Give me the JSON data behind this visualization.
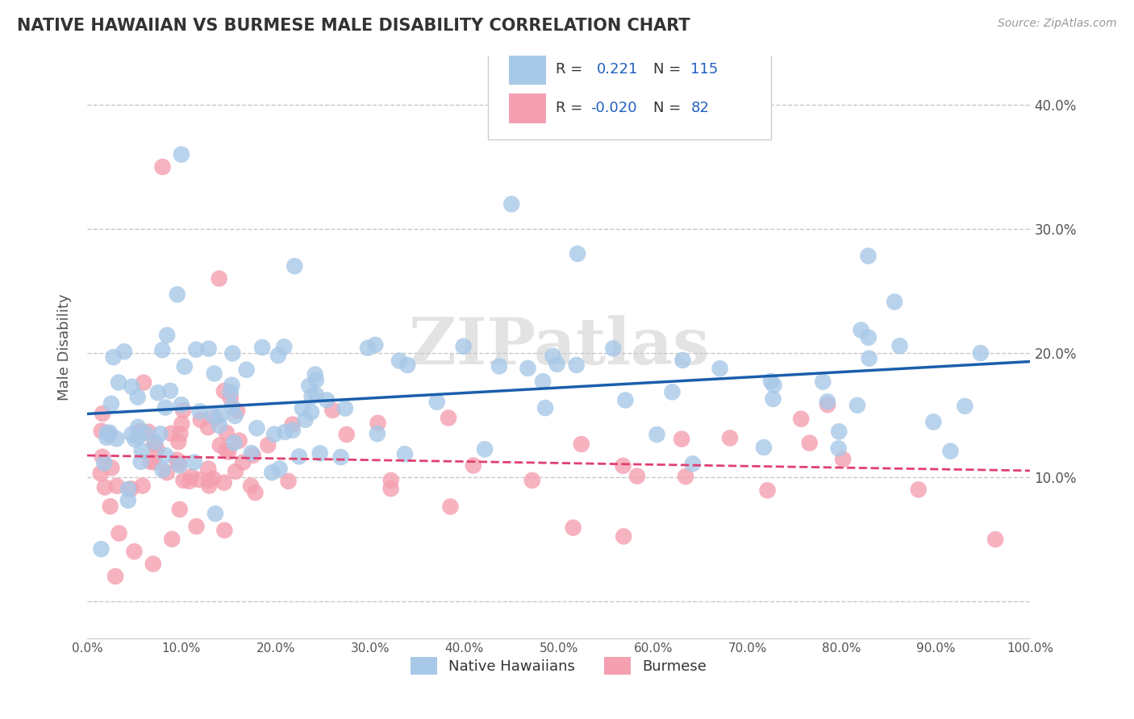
{
  "title": "NATIVE HAWAIIAN VS BURMESE MALE DISABILITY CORRELATION CHART",
  "source_text": "Source: ZipAtlas.com",
  "ylabel": "Male Disability",
  "xlim": [
    0,
    100
  ],
  "ylim": [
    -3,
    44
  ],
  "xtick_labels": [
    "0.0%",
    "10.0%",
    "20.0%",
    "30.0%",
    "40.0%",
    "50.0%",
    "60.0%",
    "70.0%",
    "80.0%",
    "90.0%",
    "100.0%"
  ],
  "ytick_labels_right": [
    "10.0%",
    "20.0%",
    "30.0%",
    "40.0%"
  ],
  "color_blue": "#A8C8E8",
  "color_pink": "#F4A0B0",
  "line_blue": "#1A5FAB",
  "line_pink": "#E04070",
  "watermark": "ZIPatlas",
  "title_color": "#333333",
  "axis_color": "#555555",
  "background_color": "#FFFFFF",
  "grid_color": "#BBBBBB",
  "r1": 0.221,
  "n1": 115,
  "r2": -0.02,
  "n2": 82,
  "seed": 42
}
